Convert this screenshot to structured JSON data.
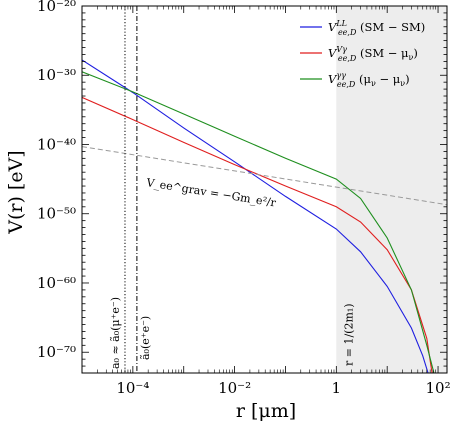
{
  "chart_data": {
    "type": "line",
    "xlabel": "r [μm]",
    "ylabel": "V(r) [eV]",
    "xscale": "log",
    "yscale": "log",
    "xlim": [
      1e-05,
      150
    ],
    "ylim": [
      1e-73,
      1e-20
    ],
    "x_tick_labels": [
      {
        "value": 0.0001,
        "label": "10⁻⁴"
      },
      {
        "value": 0.01,
        "label": "10⁻²"
      },
      {
        "value": 1,
        "label": "1"
      },
      {
        "value": 100,
        "label": "10²"
      }
    ],
    "y_tick_labels": [
      {
        "exp": -20,
        "label": "10⁻²⁰"
      },
      {
        "exp": -30,
        "label": "10⁻³⁰"
      },
      {
        "exp": -40,
        "label": "10⁻⁴⁰"
      },
      {
        "exp": -50,
        "label": "10⁻⁵⁰"
      },
      {
        "exp": -60,
        "label": "10⁻⁶⁰"
      },
      {
        "exp": -70,
        "label": "10⁻⁷⁰"
      }
    ],
    "series": [
      {
        "name": "V_{ee,D}^{LL} (SM − SM)",
        "color": "#1f1fe0",
        "points": [
          [
            1e-05,
            -27.8
          ],
          [
            0.0001,
            -32.5
          ],
          [
            0.001,
            -37.6
          ],
          [
            0.01,
            -42.5
          ],
          [
            0.1,
            -47.5
          ],
          [
            1,
            -52.2
          ],
          [
            3,
            -55.5
          ],
          [
            10,
            -60.5
          ],
          [
            30,
            -66.5
          ],
          [
            50,
            -70.5
          ],
          [
            70,
            -74
          ]
        ]
      },
      {
        "name": "V_{ee,D}^{Vγ} (SM − μ_ν)",
        "color": "#e01f1f",
        "points": [
          [
            1e-05,
            -33.2
          ],
          [
            0.0001,
            -36.4
          ],
          [
            0.001,
            -39.7
          ],
          [
            0.01,
            -42.9
          ],
          [
            0.1,
            -46.0
          ],
          [
            1,
            -49.0
          ],
          [
            3,
            -51.2
          ],
          [
            10,
            -55.2
          ],
          [
            30,
            -61
          ],
          [
            60,
            -68
          ],
          [
            80,
            -74
          ]
        ]
      },
      {
        "name": "V_{ee,D}^{γγ} (μ_ν − μ_ν)",
        "color": "#1f8f1f",
        "points": [
          [
            1e-05,
            -29.5
          ],
          [
            0.0001,
            -32.4
          ],
          [
            0.001,
            -35.6
          ],
          [
            0.01,
            -38.8
          ],
          [
            0.1,
            -42.0
          ],
          [
            1,
            -45.0
          ],
          [
            3,
            -47.8
          ],
          [
            10,
            -53.5
          ],
          [
            30,
            -61
          ],
          [
            60,
            -69
          ],
          [
            90,
            -74
          ]
        ]
      },
      {
        "name": "V_{ee}^{grav} = −Gm_e²/r",
        "color": "#999999",
        "dashed": true,
        "points": [
          [
            1e-05,
            -40.3
          ],
          [
            150,
            -48.7
          ]
        ]
      }
    ],
    "vlines": [
      {
        "x": 7e-05,
        "style": "dotted",
        "label": "a₀ ≈ ã₀(μ⁺e⁻)"
      },
      {
        "x": 0.00012,
        "style": "dashdot",
        "label": "ã₀(e⁺e⁻)"
      }
    ],
    "shaded_region": {
      "x_from": 1,
      "x_to": 150,
      "color": "#ededed",
      "label": "r = 1/(2m₁)"
    },
    "annotation_grav": "V_ee^grav = −Gm_e²/r",
    "legend": {
      "placement": "top-right",
      "entries": [
        {
          "base": "V",
          "sub": "ee,D",
          "sup": "LL",
          "text": "(SM − SM)",
          "color": "#1f1fe0"
        },
        {
          "base": "V",
          "sub": "ee,D",
          "sup": "Vγ",
          "text": "(SM − μ",
          "text_sub": "ν",
          "text_end": ")",
          "color": "#e01f1f"
        },
        {
          "base": "V",
          "sub": "ee,D",
          "sup": "γγ",
          "text": "(μ",
          "text_sub": "ν",
          "text_mid": " − μ",
          "text_sub2": "ν",
          "text_end": ")",
          "color": "#1f8f1f"
        }
      ]
    }
  }
}
